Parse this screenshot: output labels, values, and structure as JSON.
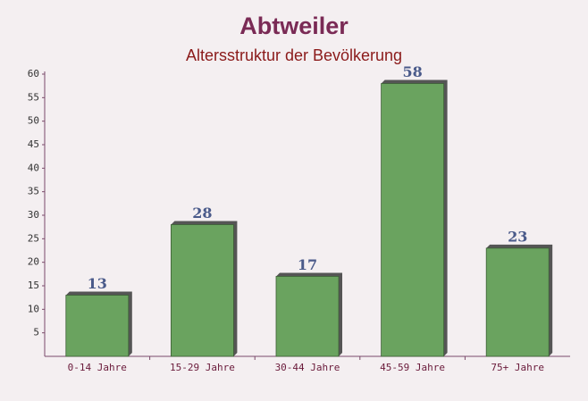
{
  "chart_data": {
    "type": "bar",
    "title": "Abtweiler",
    "subtitle": "Altersstruktur der Bevölkerung",
    "categories": [
      "0-14 Jahre",
      "15-29 Jahre",
      "30-44 Jahre",
      "45-59 Jahre",
      "75+ Jahre"
    ],
    "values": [
      13,
      28,
      17,
      58,
      23
    ],
    "color": "#6aa35f",
    "ylim": [
      0,
      60
    ],
    "yticks": [
      5,
      10,
      15,
      20,
      25,
      30,
      35,
      40,
      45,
      50,
      55,
      60
    ],
    "grid": false
  }
}
